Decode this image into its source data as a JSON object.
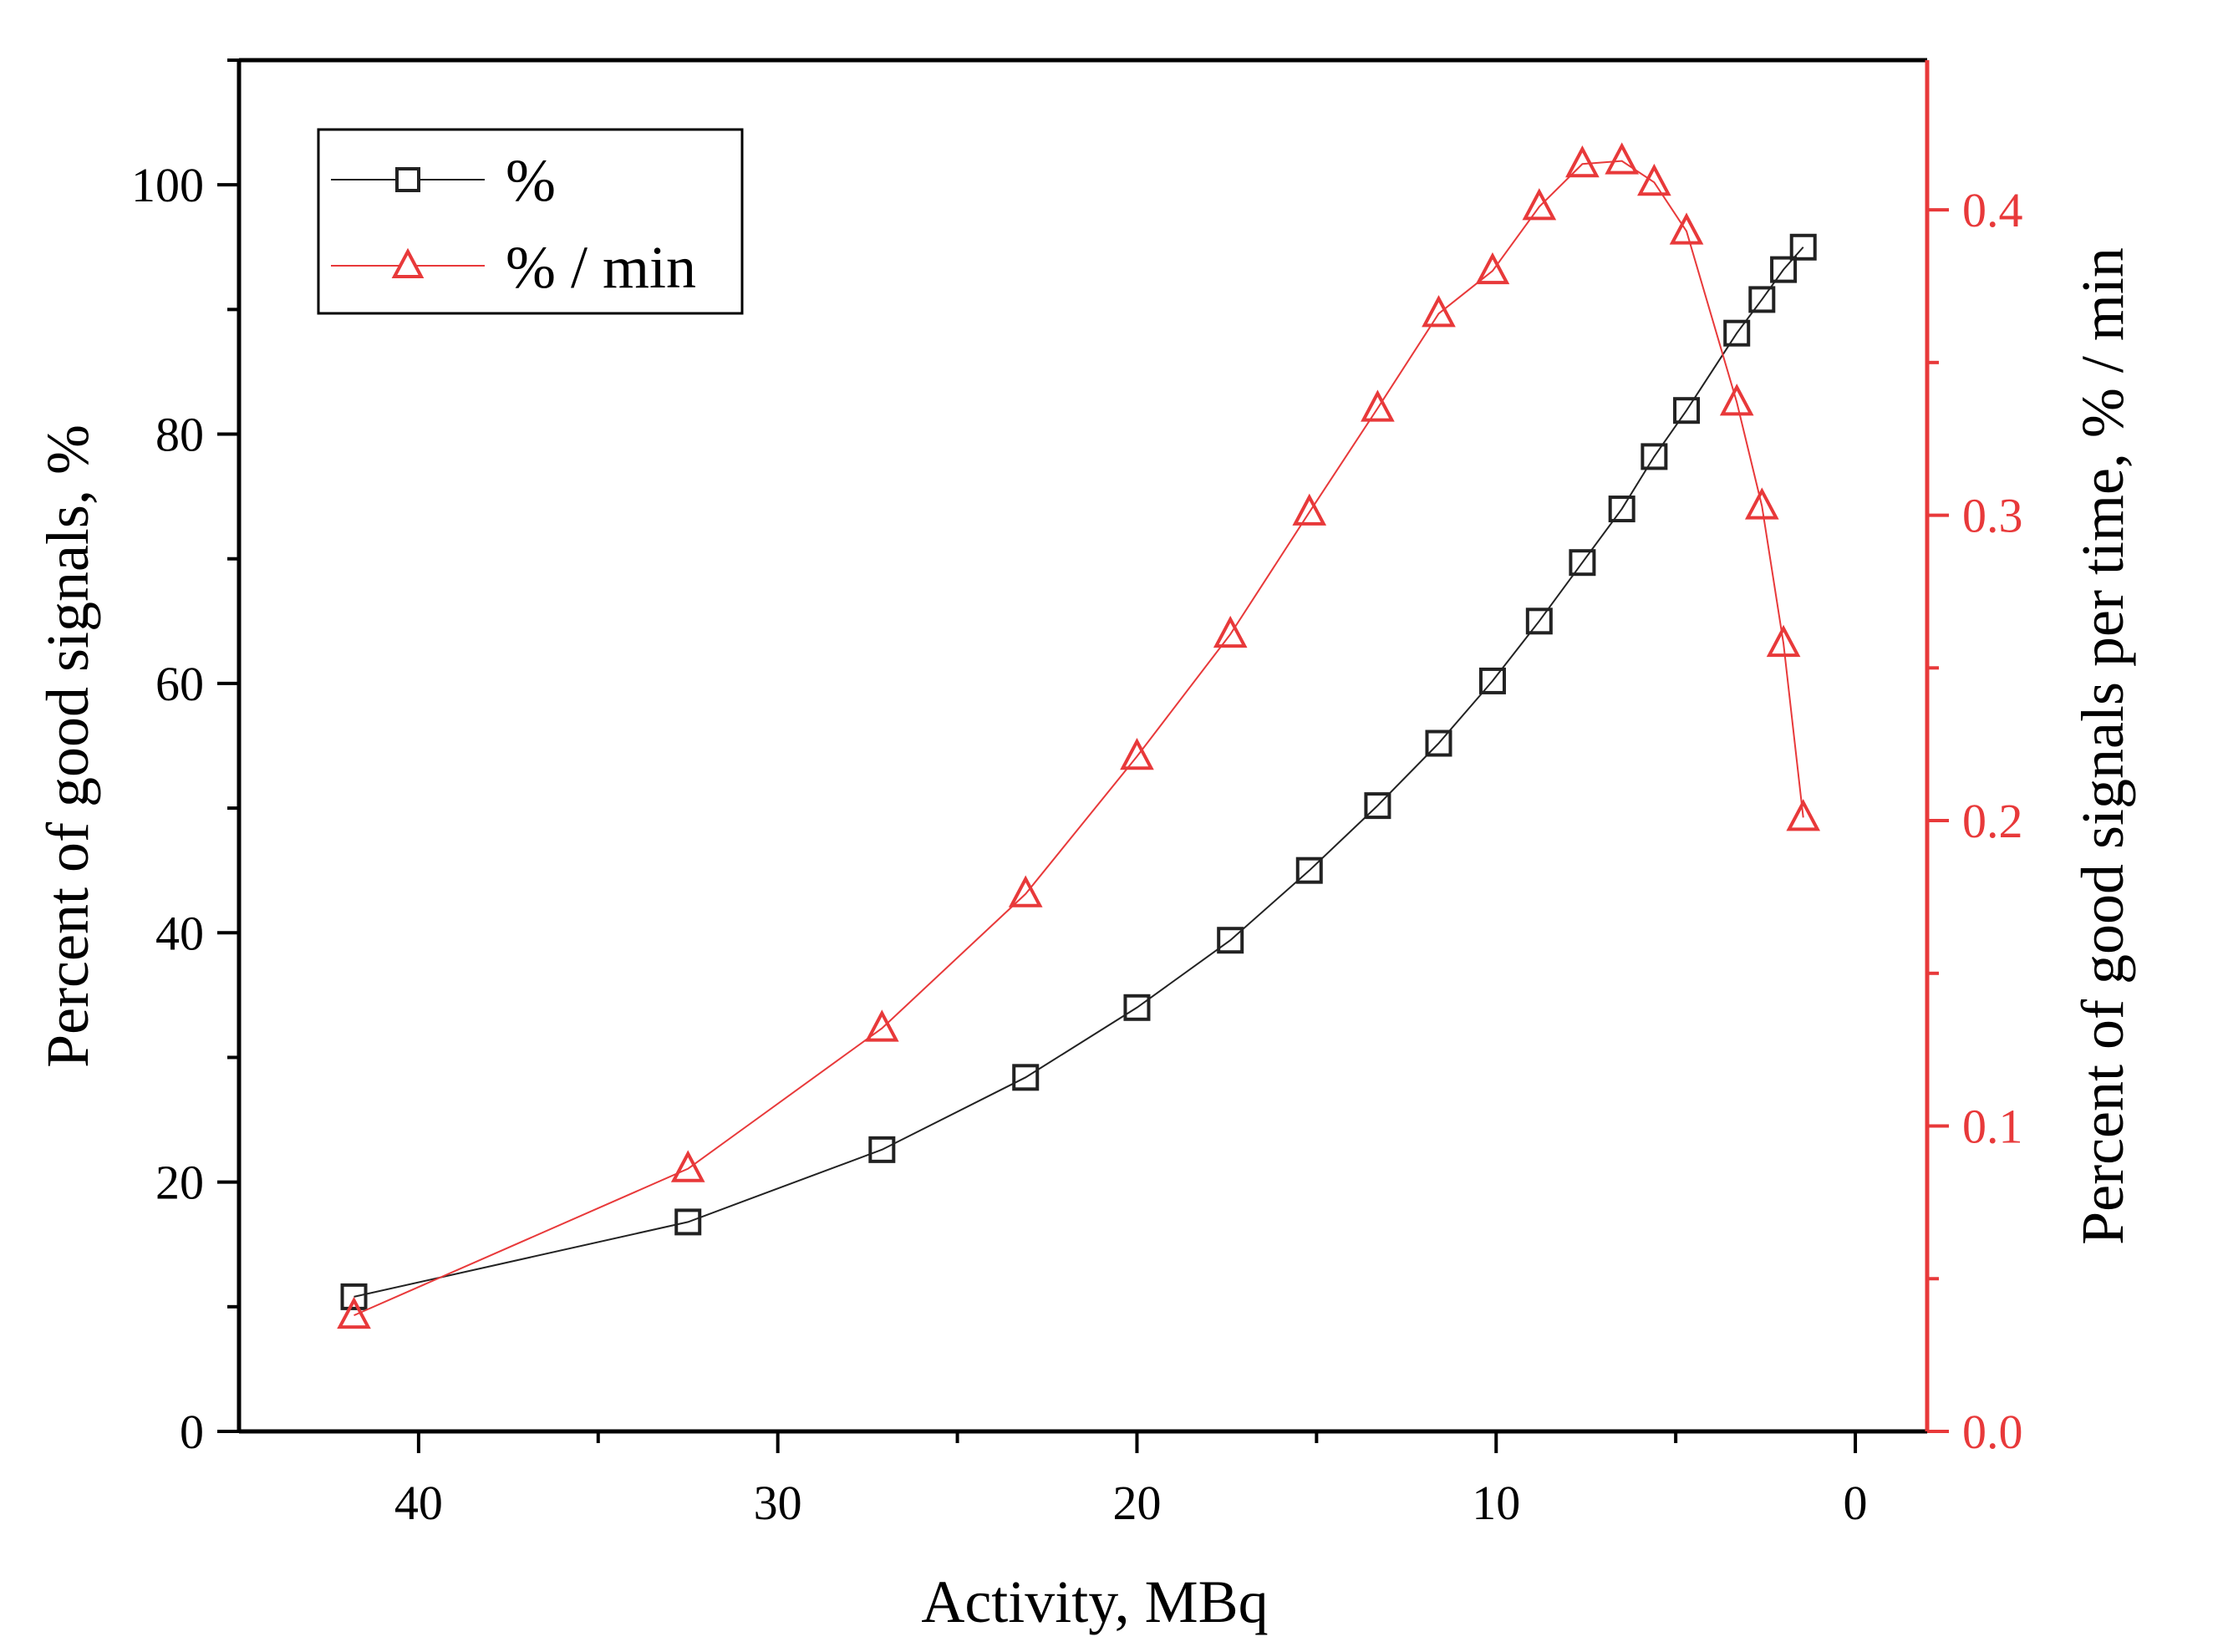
{
  "chart_data": {
    "type": "line",
    "title": "",
    "xlabel": "Activity, MBq",
    "ylabel": "Percent of good signals, %",
    "y2label": "Percent of good signals per time, % / min",
    "xlim": [
      45,
      -2
    ],
    "ylim": [
      0,
      110
    ],
    "y2lim": [
      0,
      0.449
    ],
    "x_ticks": [
      40,
      30,
      20,
      10,
      0
    ],
    "y_ticks": [
      0,
      20,
      40,
      60,
      80,
      100
    ],
    "y2_ticks": [
      0.0,
      0.1,
      0.2,
      0.3,
      0.4
    ],
    "x_tick_labels": [
      "40",
      "30",
      "20",
      "10",
      "0"
    ],
    "y_tick_labels": [
      "0",
      "20",
      "40",
      "60",
      "80",
      "100"
    ],
    "y2_tick_labels": [
      "0.0",
      "0.1",
      "0.2",
      "0.3",
      "0.4"
    ],
    "legend_position": "top-left",
    "colors": {
      "series1": "#222222",
      "series2": "#e8393a",
      "axis": "#000000",
      "axis_right": "#e8393a"
    },
    "series": [
      {
        "name": "%",
        "axis": "left",
        "marker": "square",
        "color": "#222222",
        "x": [
          41.8,
          32.5,
          27.1,
          23.1,
          20.0,
          17.4,
          15.2,
          13.3,
          11.6,
          10.1,
          8.8,
          7.6,
          6.5,
          5.6,
          4.7,
          3.3,
          2.6,
          2.0,
          1.45
        ],
        "y": [
          10.8,
          16.8,
          22.6,
          28.4,
          34.0,
          39.4,
          45.0,
          50.2,
          55.2,
          60.2,
          65.0,
          69.7,
          74.0,
          78.2,
          81.9,
          88.1,
          90.8,
          93.2,
          95.0
        ]
      },
      {
        "name": "% / min",
        "axis": "right",
        "marker": "triangle",
        "color": "#e8393a",
        "x": [
          41.8,
          32.5,
          27.1,
          23.1,
          20.0,
          17.4,
          15.2,
          13.3,
          11.6,
          10.1,
          8.8,
          7.6,
          6.5,
          5.6,
          4.7,
          3.3,
          2.6,
          2.0,
          1.45
        ],
        "y": [
          0.038,
          0.086,
          0.132,
          0.176,
          0.221,
          0.261,
          0.301,
          0.335,
          0.366,
          0.38,
          0.401,
          0.415,
          0.416,
          0.409,
          0.393,
          0.337,
          0.303,
          0.258,
          0.201
        ]
      }
    ]
  }
}
